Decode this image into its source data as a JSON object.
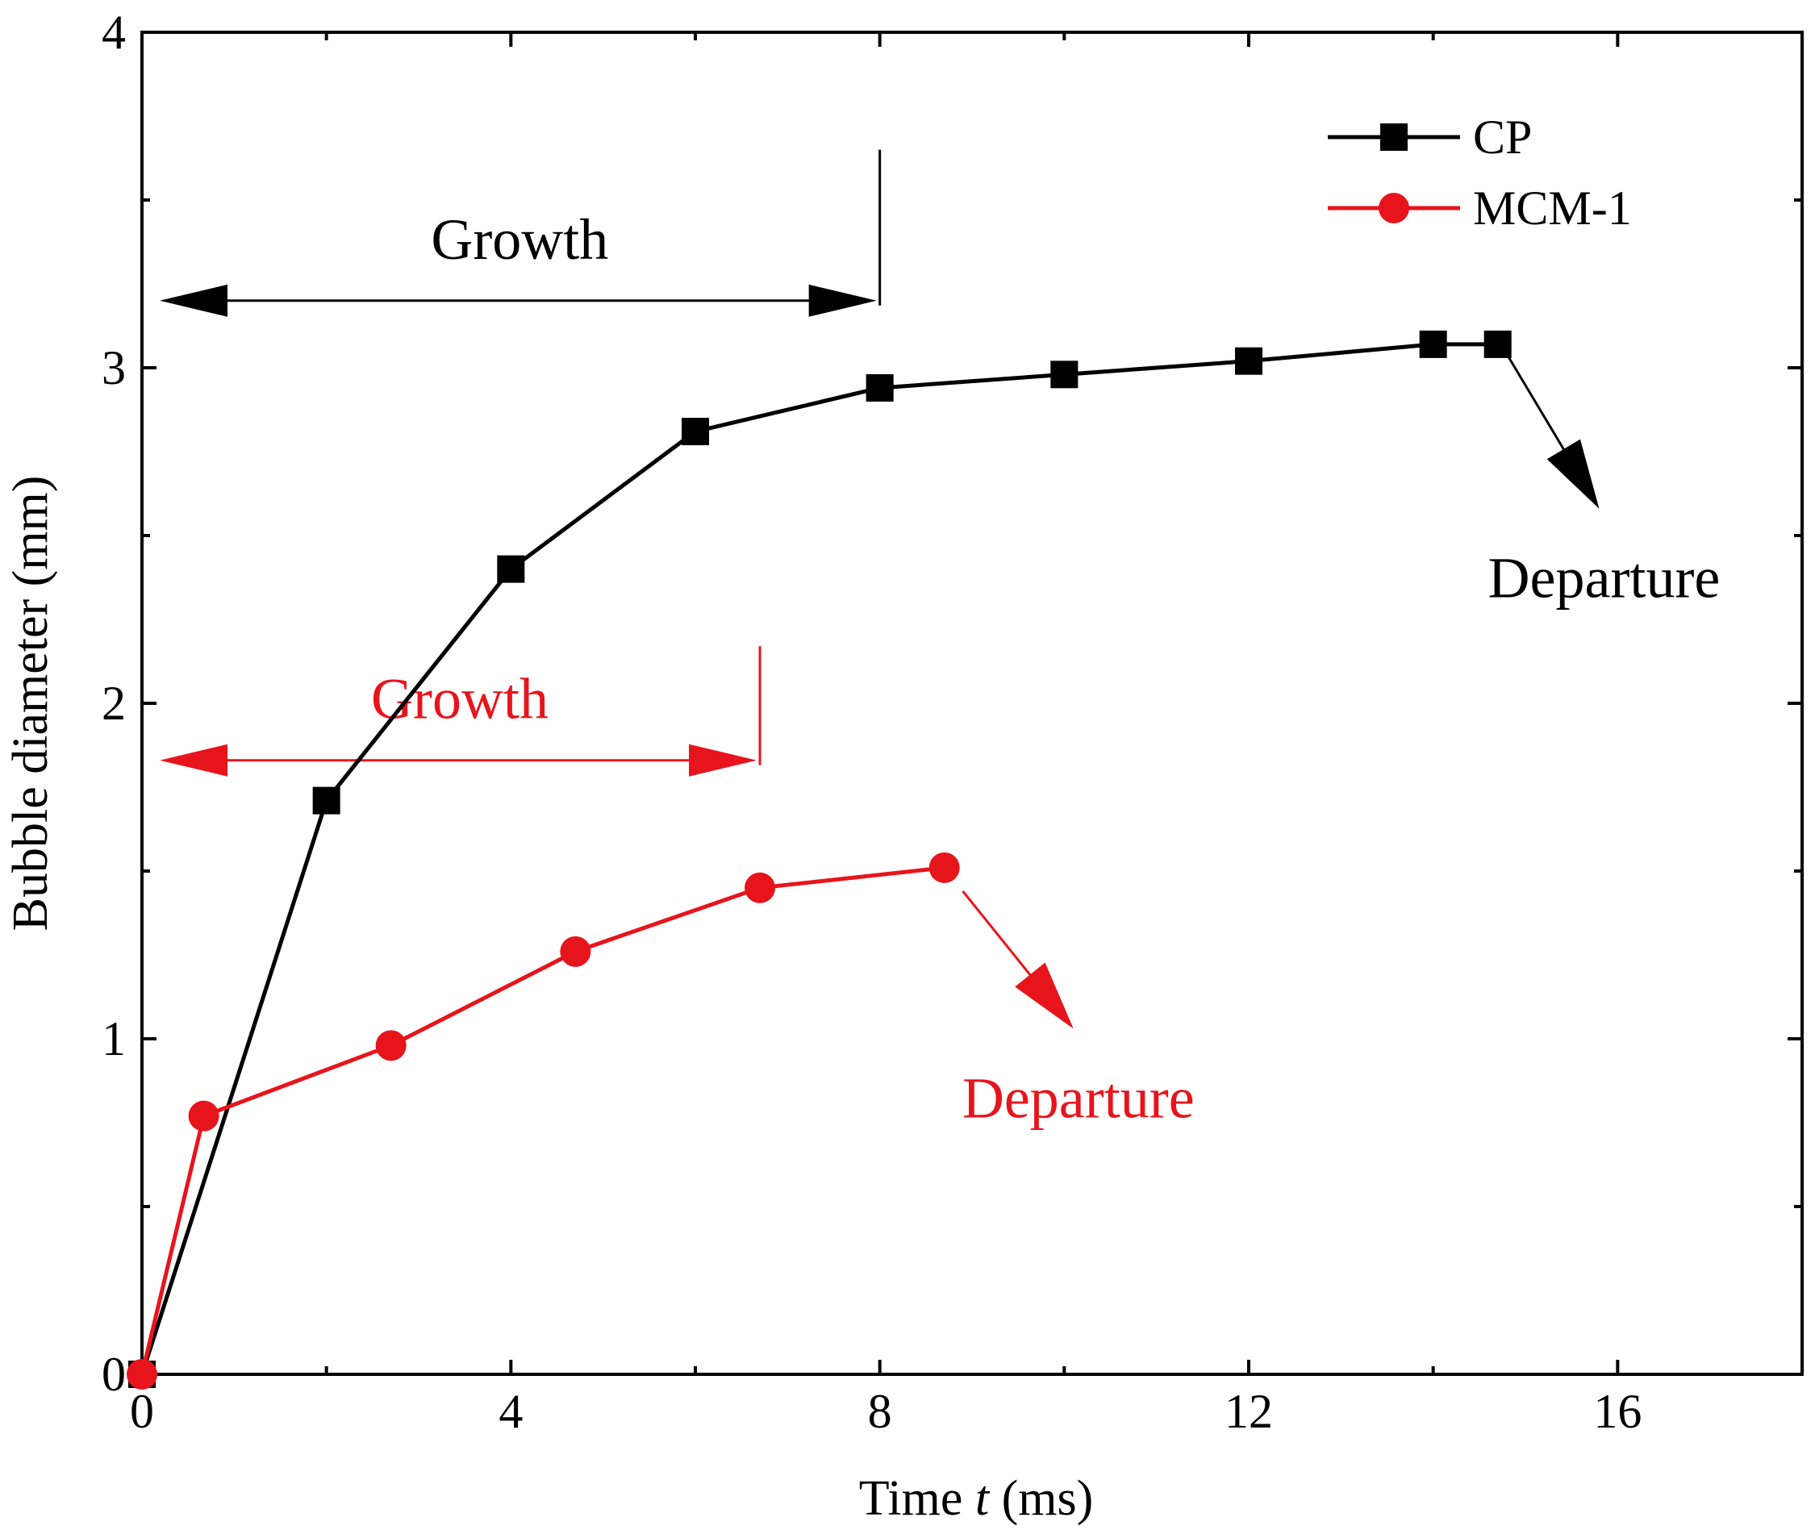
{
  "chart_data": {
    "type": "line",
    "title": "",
    "xlabel_parts": [
      "Time ",
      "t",
      " (ms)"
    ],
    "ylabel": "Bubble diameter (mm)",
    "xlim": [
      0,
      18
    ],
    "ylim": [
      0,
      4
    ],
    "x_ticks": [
      0,
      4,
      8,
      12,
      16
    ],
    "y_ticks": [
      0,
      1,
      2,
      3,
      4
    ],
    "x_minor_ticks": [
      2,
      6,
      10,
      14,
      18
    ],
    "y_minor_ticks": [
      0.5,
      1.5,
      2.5,
      3.5
    ],
    "grid": false,
    "legend_position": "top-right",
    "series": [
      {
        "name": "CP",
        "color": "#000000",
        "marker": "square",
        "x": [
          0,
          2,
          4,
          6,
          8,
          10,
          12,
          14,
          14.7
        ],
        "y": [
          0,
          1.71,
          2.4,
          2.81,
          2.94,
          2.98,
          3.02,
          3.07,
          3.07
        ]
      },
      {
        "name": "MCM-1",
        "color": "#e8141c",
        "marker": "circle",
        "x": [
          0,
          0.67,
          2.7,
          4.7,
          6.7,
          8.7
        ],
        "y": [
          0,
          0.77,
          0.98,
          1.26,
          1.45,
          1.51
        ]
      }
    ],
    "annotations": [
      {
        "series": "CP",
        "color": "#000000",
        "growth_label": "Growth",
        "growth_end_x": 8,
        "arrow_y": 3.2,
        "vline_top_y": 3.65,
        "departure_label": "Departure",
        "departure_from": [
          14.8,
          3.04
        ],
        "departure_to": [
          15.8,
          2.58
        ]
      },
      {
        "series": "MCM-1",
        "color": "#e8141c",
        "growth_label": "Growth",
        "growth_end_x": 6.7,
        "arrow_y": 1.83,
        "vline_top_y": 2.17,
        "departure_label": "Departure",
        "departure_from": [
          8.9,
          1.44
        ],
        "departure_to": [
          10.1,
          1.03
        ]
      }
    ]
  }
}
